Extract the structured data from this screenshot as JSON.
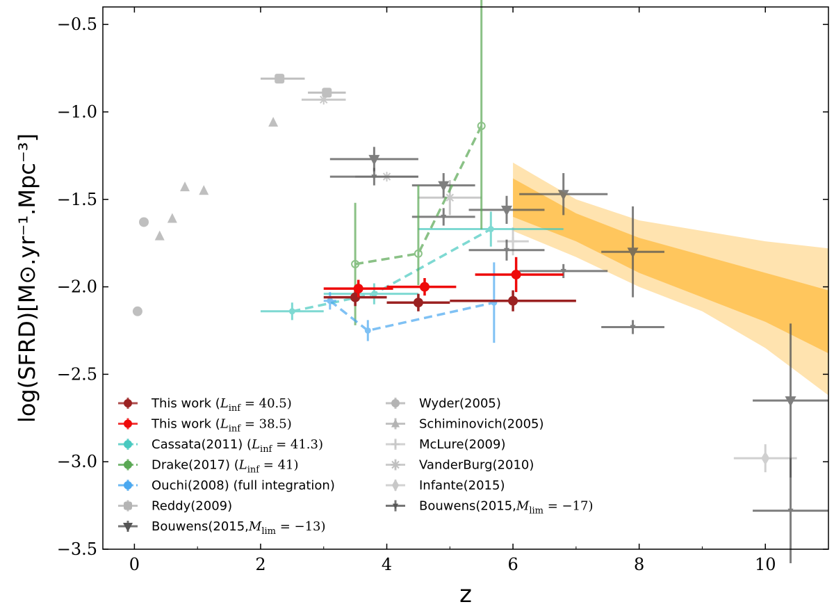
{
  "chart_data": {
    "type": "scatter",
    "xlabel": "z",
    "ylabel": "log(SFRD)[M⊙.yr⁻¹.Mpc⁻³]",
    "xlim": [
      -0.5,
      11
    ],
    "ylim": [
      -3.5,
      -0.4
    ],
    "xticks": [
      0,
      2,
      4,
      6,
      8,
      10
    ],
    "xtick_labels": [
      "0",
      "2",
      "4",
      "6",
      "8",
      "10"
    ],
    "yticks": [
      -0.5,
      -1.0,
      -1.5,
      -2.0,
      -2.5,
      -3.0,
      -3.5
    ],
    "ytick_labels": [
      "−0.5",
      "−1.0",
      "−1.5",
      "−2.0",
      "−2.5",
      "−3.0",
      "−3.5"
    ],
    "bands": [
      {
        "name": "outer",
        "color": "#ffc04d",
        "opacity": 0.45,
        "upper": [
          [
            6.0,
            -1.29
          ],
          [
            7.0,
            -1.5
          ],
          [
            8.0,
            -1.62
          ],
          [
            9.0,
            -1.68
          ],
          [
            10.0,
            -1.74
          ],
          [
            11.0,
            -1.78
          ]
        ],
        "lower": [
          [
            6.0,
            -1.68
          ],
          [
            7.0,
            -1.83
          ],
          [
            8.0,
            -2.0
          ],
          [
            9.0,
            -2.14
          ],
          [
            10.0,
            -2.35
          ],
          [
            11.0,
            -2.62
          ]
        ]
      },
      {
        "name": "inner",
        "color": "#ffb326",
        "opacity": 0.6,
        "upper": [
          [
            6.0,
            -1.38
          ],
          [
            7.0,
            -1.58
          ],
          [
            8.0,
            -1.72
          ],
          [
            9.0,
            -1.82
          ],
          [
            10.0,
            -1.92
          ],
          [
            11.0,
            -2.02
          ]
        ],
        "lower": [
          [
            6.0,
            -1.6
          ],
          [
            7.0,
            -1.74
          ],
          [
            8.0,
            -1.92
          ],
          [
            9.0,
            -2.06
          ],
          [
            10.0,
            -2.2
          ],
          [
            11.0,
            -2.38
          ]
        ]
      }
    ],
    "series": [
      {
        "name": "Reddy(2009)",
        "color": "#b4b4b4",
        "opacity": 0.85,
        "marker": "square",
        "line": false,
        "points": [
          {
            "x": 2.3,
            "y": -0.81,
            "xerr": [
              0.3,
              0.4
            ]
          },
          {
            "x": 3.05,
            "y": -0.89,
            "xerr": [
              0.3,
              0.3
            ]
          }
        ]
      },
      {
        "name": "Schiminovich(2005)",
        "color": "#b4b4b4",
        "opacity": 0.85,
        "marker": "triangle",
        "line": false,
        "points": [
          {
            "x": 2.2,
            "y": -1.06
          },
          {
            "x": 0.4,
            "y": -1.71
          },
          {
            "x": 0.6,
            "y": -1.61
          },
          {
            "x": 0.8,
            "y": -1.43
          },
          {
            "x": 1.1,
            "y": -1.45
          }
        ]
      },
      {
        "name": "Wyder(2005)",
        "color": "#b4b4b4",
        "opacity": 0.85,
        "marker": "circle",
        "line": false,
        "points": [
          {
            "x": 0.05,
            "y": -2.14
          },
          {
            "x": 0.15,
            "y": -1.63
          }
        ]
      },
      {
        "name": "VanderBurg(2010)",
        "color": "#c0c0c0",
        "opacity": 0.85,
        "marker": "star",
        "line": false,
        "points": [
          {
            "x": 3.0,
            "y": -0.93,
            "xerr": [
              0.35,
              0.35
            ]
          },
          {
            "x": 4.0,
            "y": -1.37,
            "xerr": [
              0.5,
              0.5
            ]
          },
          {
            "x": 5.0,
            "y": -1.49,
            "xerr": [
              0.5,
              0.5
            ],
            "yerr": [
              0.1,
              0.1
            ]
          }
        ]
      },
      {
        "name": "McLure(2009)",
        "color": "#c8c8c8",
        "opacity": 0.85,
        "marker": "plus",
        "line": false,
        "points": [
          {
            "x": 6.0,
            "y": -1.74,
            "xerr": [
              0.25,
              0.25
            ],
            "yerr": [
              0.08,
              0.08
            ]
          }
        ]
      },
      {
        "name": "Infante(2015)",
        "color": "#c8c8c8",
        "opacity": 0.85,
        "marker": "diamond",
        "line": false,
        "points": [
          {
            "x": 10.0,
            "y": -2.98,
            "xerr": [
              0.5,
              0.5
            ],
            "yerr": [
              0.08,
              0.08
            ]
          }
        ]
      },
      {
        "name": "Bouwens(2015,M_lim=−13)",
        "color": "#555555",
        "opacity": 0.75,
        "marker": "tri_down",
        "line": false,
        "points": [
          {
            "x": 3.8,
            "y": -1.27,
            "xerr": [
              0.7,
              0.7
            ],
            "yerr": [
              0.07,
              0.07
            ]
          },
          {
            "x": 4.9,
            "y": -1.42,
            "xerr": [
              0.5,
              0.5
            ],
            "yerr": [
              0.07,
              0.07
            ]
          },
          {
            "x": 5.9,
            "y": -1.56,
            "xerr": [
              0.6,
              0.6
            ],
            "yerr": [
              0.08,
              0.08
            ]
          },
          {
            "x": 6.8,
            "y": -1.47,
            "xerr": [
              0.7,
              0.7
            ],
            "yerr": [
              0.12,
              0.12
            ]
          },
          {
            "x": 7.9,
            "y": -1.8,
            "xerr": [
              0.5,
              0.5
            ],
            "yerr": [
              0.26,
              0.26
            ]
          },
          {
            "x": 10.4,
            "y": -2.65,
            "xerr": [
              0.6,
              0.6
            ],
            "yerr": [
              0.44,
              0.44
            ]
          }
        ]
      },
      {
        "name": "Bouwens(2015,M_lim=−17)",
        "color": "#555555",
        "opacity": 0.75,
        "marker": "tri_small",
        "line": false,
        "points": [
          {
            "x": 3.8,
            "y": -1.37,
            "xerr": [
              0.7,
              0.7
            ],
            "yerr": [
              0.05,
              0.05
            ]
          },
          {
            "x": 4.9,
            "y": -1.6,
            "xerr": [
              0.5,
              0.5
            ],
            "yerr": [
              0.05,
              0.05
            ]
          },
          {
            "x": 5.9,
            "y": -1.79,
            "xerr": [
              0.6,
              0.6
            ],
            "yerr": [
              0.06,
              0.06
            ]
          },
          {
            "x": 6.8,
            "y": -1.91,
            "xerr": [
              0.7,
              0.7
            ],
            "yerr": [
              0.04,
              0.04
            ]
          },
          {
            "x": 7.9,
            "y": -2.23,
            "xerr": [
              0.5,
              0.5
            ],
            "yerr": [
              0.04,
              0.04
            ]
          },
          {
            "x": 10.4,
            "y": -3.28,
            "xerr": [
              0.6,
              0.6
            ],
            "yerr": [
              0.3,
              0.3
            ]
          }
        ]
      },
      {
        "name": "Cassata(2011) (L_inf = 41.3)",
        "color": "#48c9c0",
        "opacity": 0.7,
        "marker": "circle",
        "line": true,
        "points": [
          {
            "x": 2.5,
            "y": -2.14,
            "xerr": [
              0.5,
              0.5
            ],
            "yerr": [
              0.05,
              0.05
            ]
          },
          {
            "x": 3.8,
            "y": -2.04,
            "xerr": [
              0.8,
              0.7
            ],
            "yerr": [
              0.06,
              0.06
            ]
          },
          {
            "x": 5.65,
            "y": -1.67,
            "xerr": [
              1.15,
              1.15
            ],
            "yerr": [
              0.1,
              0.1
            ]
          }
        ]
      },
      {
        "name": "Drake(2017) (L_inf = 41)",
        "color": "#5aa854",
        "opacity": 0.7,
        "marker": "circle_open",
        "line": true,
        "points": [
          {
            "x": 3.5,
            "y": -1.87,
            "yerr": [
              0.35,
              0.35
            ]
          },
          {
            "x": 4.5,
            "y": -1.81,
            "yerr": [
              0.18,
              0.39
            ]
          },
          {
            "x": 5.5,
            "y": -1.08,
            "yerr": [
              0.59,
              0.74
            ]
          }
        ]
      },
      {
        "name": "Ouchi(2008) (full integration)",
        "color": "#4aa8f0",
        "opacity": 0.7,
        "marker": "circle",
        "line": true,
        "points": [
          {
            "x": 3.1,
            "y": -2.08,
            "xerr": [
              0.1,
              0.1
            ],
            "yerr": [
              0.05,
              0.05
            ]
          },
          {
            "x": 3.7,
            "y": -2.25,
            "yerr": [
              0.06,
              0.06
            ]
          },
          {
            "x": 5.7,
            "y": -2.09,
            "yerr": [
              0.23,
              0.23
            ]
          }
        ]
      },
      {
        "name": "This work (L_inf = 40.5)",
        "color": "#9b2222",
        "opacity": 1.0,
        "marker": "circle",
        "line": false,
        "points": [
          {
            "x": 3.5,
            "y": -2.06,
            "xerr": [
              0.5,
              0.5
            ],
            "yerr": [
              0.05,
              0.05
            ]
          },
          {
            "x": 4.5,
            "y": -2.09,
            "xerr": [
              0.5,
              0.5
            ],
            "yerr": [
              0.05,
              0.05
            ]
          },
          {
            "x": 6.0,
            "y": -2.08,
            "xerr": [
              1.0,
              1.0
            ],
            "yerr": [
              0.06,
              0.06
            ]
          }
        ]
      },
      {
        "name": "This work (L_inf = 38.5)",
        "color": "#ee0b0b",
        "opacity": 1.0,
        "marker": "circle",
        "line": false,
        "points": [
          {
            "x": 3.55,
            "y": -2.01,
            "xerr": [
              0.55,
              0.55
            ],
            "yerr": [
              0.05,
              0.05
            ]
          },
          {
            "x": 4.6,
            "y": -2.0,
            "xerr": [
              0.6,
              0.5
            ],
            "yerr": [
              0.05,
              0.05
            ]
          },
          {
            "x": 6.05,
            "y": -1.93,
            "xerr": [
              0.65,
              0.75
            ],
            "yerr": [
              0.1,
              0.1
            ]
          }
        ]
      }
    ],
    "legend": {
      "position": "lower-left",
      "left_column": [
        {
          "label": "This work (",
          "math": "L",
          "sub": "inf",
          "tail": " = 40.5)",
          "color": "#9b2222",
          "marker": "circle"
        },
        {
          "label": "This work (",
          "math": "L",
          "sub": "inf",
          "tail": " = 38.5)",
          "color": "#ee0b0b",
          "marker": "circle"
        },
        {
          "label": "Cassata(2011) (",
          "math": "L",
          "sub": "inf",
          "tail": " = 41.3)",
          "color": "#48c9c0",
          "marker": "circle"
        },
        {
          "label": "Drake(2017) (",
          "math": "L",
          "sub": "inf",
          "tail": " = 41)",
          "color": "#5aa854",
          "marker": "circle"
        },
        {
          "label": "Ouchi(2008) (full integration)",
          "math": "",
          "sub": "",
          "tail": "",
          "color": "#4aa8f0",
          "marker": "circle"
        },
        {
          "label": "Reddy(2009)",
          "math": "",
          "sub": "",
          "tail": "",
          "color": "#b4b4b4",
          "marker": "square"
        },
        {
          "label": "Bouwens(2015,",
          "math": "M",
          "sub": "lim",
          "tail": " = −13)",
          "color": "#555555",
          "marker": "tri_down"
        }
      ],
      "right_column": [
        {
          "label": "Wyder(2005)",
          "math": "",
          "sub": "",
          "tail": "",
          "color": "#b4b4b4",
          "marker": "circle"
        },
        {
          "label": "Schiminovich(2005)",
          "math": "",
          "sub": "",
          "tail": "",
          "color": "#b4b4b4",
          "marker": "triangle"
        },
        {
          "label": "McLure(2009)",
          "math": "",
          "sub": "",
          "tail": "",
          "color": "#c8c8c8",
          "marker": "plus"
        },
        {
          "label": "VanderBurg(2010)",
          "math": "",
          "sub": "",
          "tail": "",
          "color": "#c0c0c0",
          "marker": "star"
        },
        {
          "label": "Infante(2015)",
          "math": "",
          "sub": "",
          "tail": "",
          "color": "#c8c8c8",
          "marker": "diamond"
        },
        {
          "label": "Bouwens(2015,",
          "math": "M",
          "sub": "lim",
          "tail": " = −17)",
          "color": "#555555",
          "marker": "tri_small"
        }
      ]
    }
  }
}
